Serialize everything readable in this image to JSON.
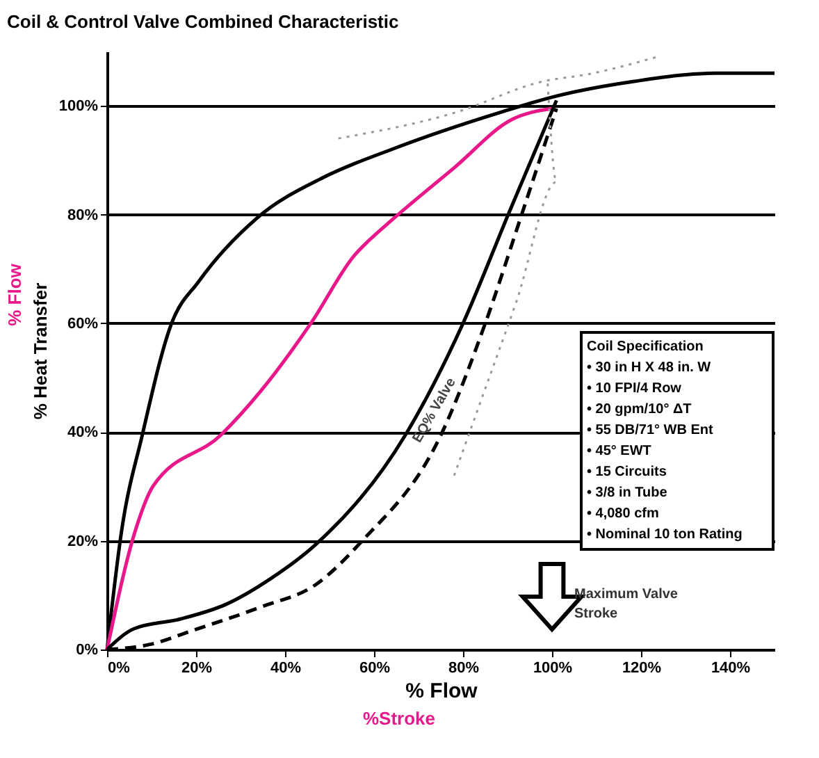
{
  "chart_data": {
    "type": "line",
    "title": "Coil & Control Valve Combined Characteristic",
    "xlabel": "% Flow",
    "ylabel": "% Heat Transfer",
    "xlim": [
      0,
      150
    ],
    "ylim": [
      0,
      110
    ],
    "xticks": [
      {
        "value": 0,
        "label": "0%"
      },
      {
        "value": 20,
        "label": "20%"
      },
      {
        "value": 40,
        "label": "40%"
      },
      {
        "value": 60,
        "label": "60%"
      },
      {
        "value": 80,
        "label": "80%"
      },
      {
        "value": 100,
        "label": "100%"
      },
      {
        "value": 120,
        "label": "120%"
      },
      {
        "value": 140,
        "label": "140%"
      }
    ],
    "yticks": [
      {
        "value": 0,
        "label": "0%"
      },
      {
        "value": 20,
        "label": "20%"
      },
      {
        "value": 40,
        "label": "40%"
      },
      {
        "value": 60,
        "label": "60%"
      },
      {
        "value": 80,
        "label": "80%"
      },
      {
        "value": 100,
        "label": "100%"
      }
    ],
    "grid": "y",
    "marker": "none",
    "series": [
      {
        "color": "#000000",
        "line_style": "solid",
        "x": [
          0,
          3.3,
          7.9,
          14.5,
          20.6,
          33.6,
          48.8,
          64,
          88,
          101,
          118.5,
          136.7,
          150
        ],
        "values": [
          0,
          22,
          39.4,
          60,
          67.7,
          79.3,
          86.9,
          92,
          98.7,
          101.8,
          104.5,
          106,
          106
        ]
      },
      {
        "color": "#e8178a",
        "line_style": "solid",
        "x": [
          0,
          6.4,
          10.3,
          25.5,
          34.5,
          45.8,
          55.8,
          58.8,
          64,
          78,
          91,
          100
        ],
        "values": [
          0,
          22,
          30,
          39.4,
          47.5,
          60,
          72.7,
          75.2,
          79,
          88.6,
          97.5,
          99.5
        ]
      },
      {
        "color": "#000000",
        "line_style": "solid",
        "x": [
          0,
          6,
          16.4,
          26.7,
          36.7,
          47,
          67,
          80,
          90.3,
          101
        ],
        "values": [
          0,
          3.8,
          5.6,
          8.3,
          13,
          19.4,
          39.4,
          60,
          80.3,
          101
        ]
      },
      {
        "color": "#000000",
        "line_style": "dashed",
        "x": [
          0,
          10,
          18.5,
          34.5,
          47,
          57,
          75,
          85,
          93.3,
          101
        ],
        "values": [
          0,
          1,
          3.3,
          7.8,
          12,
          19.7,
          39.4,
          60,
          80.3,
          99.5
        ]
      },
      {
        "color": "#999999",
        "line_style": "dotted",
        "x": [
          52,
          78,
          98,
          108,
          123.6
        ],
        "values": [
          94,
          98.7,
          104.5,
          105.8,
          109
        ]
      },
      {
        "color": "#999999",
        "line_style": "dotted",
        "x": [
          78,
          85,
          92,
          101,
          99
        ],
        "values": [
          32,
          48,
          64,
          86,
          104.5
        ]
      }
    ],
    "annotations": [
      "% Flow",
      "%Stroke",
      "EQ% Valve",
      "Maximum Valve Stroke",
      "Coil Specification",
      "• 30 in H X 48 in. W",
      "• 10 FPI/4 Row",
      "• 20 gpm/10° ΔT",
      "• 55 DB/71° WB Ent",
      "• 45° EWT",
      "• 15 Circuits",
      "• 3/8 in Tube",
      "• 4,080 cfm",
      "• Nominal 10 ton Rating"
    ]
  }
}
